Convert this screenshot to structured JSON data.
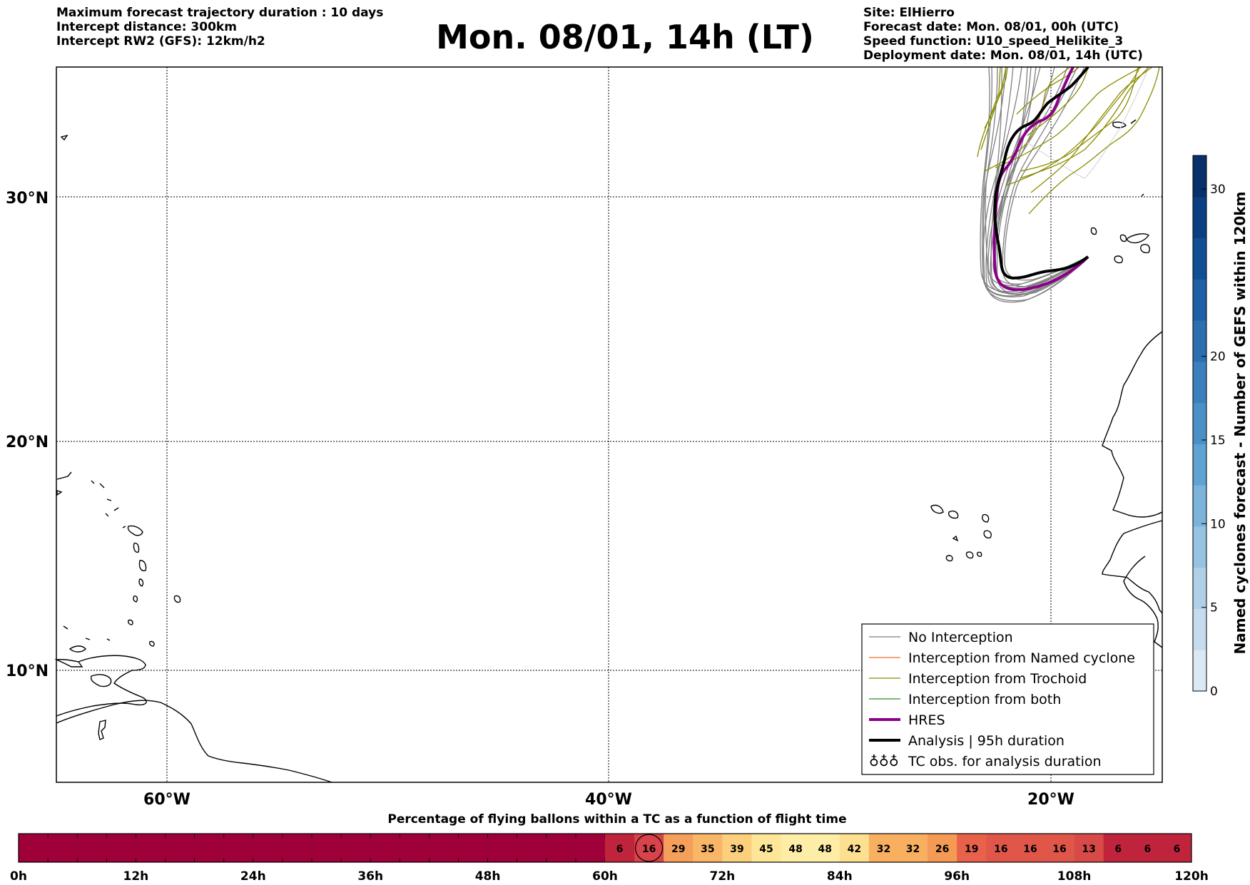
{
  "header": {
    "left_lines": [
      "Maximum forecast trajectory duration : 10 days",
      "Intercept distance: 300km",
      "Intercept RW2 (GFS):  12km/h2"
    ],
    "title": "Mon. 08/01, 14h (LT)",
    "right_lines": [
      "Site: ElHierro",
      "Forecast date: Mon. 08/01, 00h (UTC)",
      "Speed function: U10_speed_Helikite_3",
      "Deployment date: Mon. 08/01, 14h (UTC)"
    ]
  },
  "map": {
    "lat_labels": [
      "30°N",
      "20°N",
      "10°N"
    ],
    "lon_labels": [
      "60°W",
      "40°W",
      "20°W"
    ],
    "grid": true
  },
  "legend": {
    "items": [
      {
        "label": "No Interception",
        "color": "#7f7f7f",
        "style": "thin"
      },
      {
        "label": "Interception from Named cyclone",
        "color": "#f26a2c",
        "style": "thin"
      },
      {
        "label": "Interception from Trochoid",
        "color": "#8b8b00",
        "style": "thin"
      },
      {
        "label": "Interception from both",
        "color": "#2a8a2a",
        "style": "thin"
      },
      {
        "label": "HRES",
        "color": "#8b008b",
        "style": "thick"
      },
      {
        "label": "Analysis | 95h duration",
        "color": "#000000",
        "style": "thick"
      },
      {
        "label": "TC obs. for analysis duration",
        "color": "#000000",
        "style": "symbol"
      }
    ]
  },
  "colorbar": {
    "label": "Named cyclones forecast - Number of GEFS within 120km",
    "ticks": [
      "0",
      "5",
      "10",
      "15",
      "20",
      "30"
    ],
    "colors": [
      "#dbe8f6",
      "#c7dbef",
      "#b0d0e8",
      "#96c3e1",
      "#7bb3da",
      "#60a2d1",
      "#4a90c6",
      "#3b7fbd",
      "#2c6eb0",
      "#1f5fa5",
      "#124e94",
      "#0b3f81",
      "#08306b"
    ]
  },
  "timeline": {
    "title": "Percentage of flying ballons within a TC as a function of flight time",
    "tick_labels": [
      "0h",
      "12h",
      "24h",
      "36h",
      "48h",
      "60h",
      "72h",
      "84h",
      "96h",
      "108h",
      "120h"
    ],
    "base_color": "#a0003a",
    "cells": [
      {
        "value": "6",
        "color": "#c0243d"
      },
      {
        "value": "16",
        "color": "#d8424a",
        "circled": true
      },
      {
        "value": "29",
        "color": "#f5a05a"
      },
      {
        "value": "35",
        "color": "#f8b666"
      },
      {
        "value": "39",
        "color": "#fbcf7c"
      },
      {
        "value": "45",
        "color": "#fde698"
      },
      {
        "value": "48",
        "color": "#feeda6"
      },
      {
        "value": "48",
        "color": "#feeda6"
      },
      {
        "value": "42",
        "color": "#fde08f"
      },
      {
        "value": "32",
        "color": "#f8b060"
      },
      {
        "value": "32",
        "color": "#f8b060"
      },
      {
        "value": "26",
        "color": "#f49a55"
      },
      {
        "value": "19",
        "color": "#e8614a"
      },
      {
        "value": "16",
        "color": "#e0574a"
      },
      {
        "value": "16",
        "color": "#e0574a"
      },
      {
        "value": "16",
        "color": "#e0574a"
      },
      {
        "value": "13",
        "color": "#d84a48"
      },
      {
        "value": "6",
        "color": "#c0243d"
      },
      {
        "value": "6",
        "color": "#c0243d"
      },
      {
        "value": "6",
        "color": "#c0243d"
      }
    ]
  }
}
